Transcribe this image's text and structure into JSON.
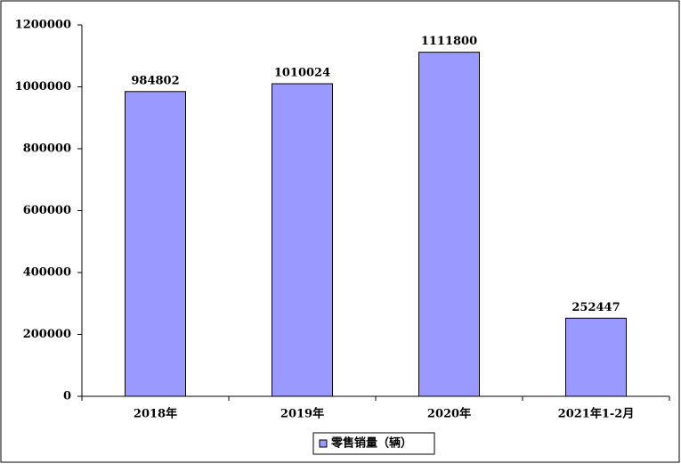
{
  "chart_data": {
    "type": "bar",
    "categories": [
      "2018年",
      "2019年",
      "2020年",
      "2021年1-2月"
    ],
    "values": [
      984802,
      1010024,
      1111800,
      252447
    ],
    "series_name": "零售销量（辆）",
    "color": "#9999ff",
    "ylim": [
      0,
      1200000
    ],
    "yticks": [
      0,
      200000,
      400000,
      600000,
      800000,
      1000000,
      1200000
    ],
    "grid": false,
    "legend": "bottom"
  }
}
